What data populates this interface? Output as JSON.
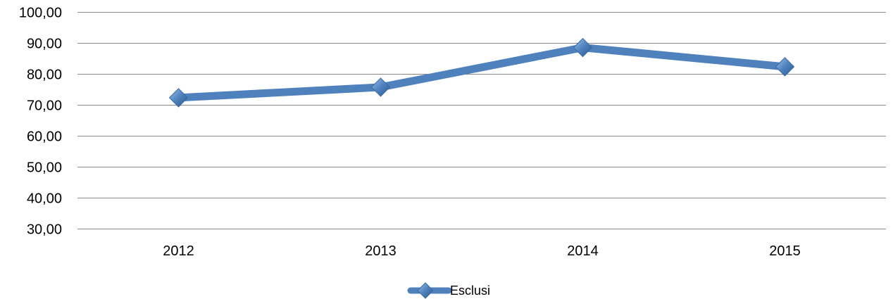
{
  "chart_data": {
    "type": "line",
    "title": "",
    "xlabel": "",
    "ylabel": "",
    "categories": [
      "2012",
      "2013",
      "2014",
      "2015"
    ],
    "series": [
      {
        "name": "Esclusi",
        "values": [
          72.3,
          75.7,
          88.5,
          82.3
        ],
        "color": "#4F81BD"
      }
    ],
    "ylim": [
      30,
      100
    ],
    "yticks": [
      30,
      40,
      50,
      60,
      70,
      80,
      90,
      100
    ],
    "ytick_labels": [
      "30,00",
      "40,00",
      "50,00",
      "60,00",
      "70,00",
      "80,00",
      "90,00",
      "100,00"
    ],
    "grid": true,
    "legend": "bottom",
    "marker": "diamond"
  }
}
